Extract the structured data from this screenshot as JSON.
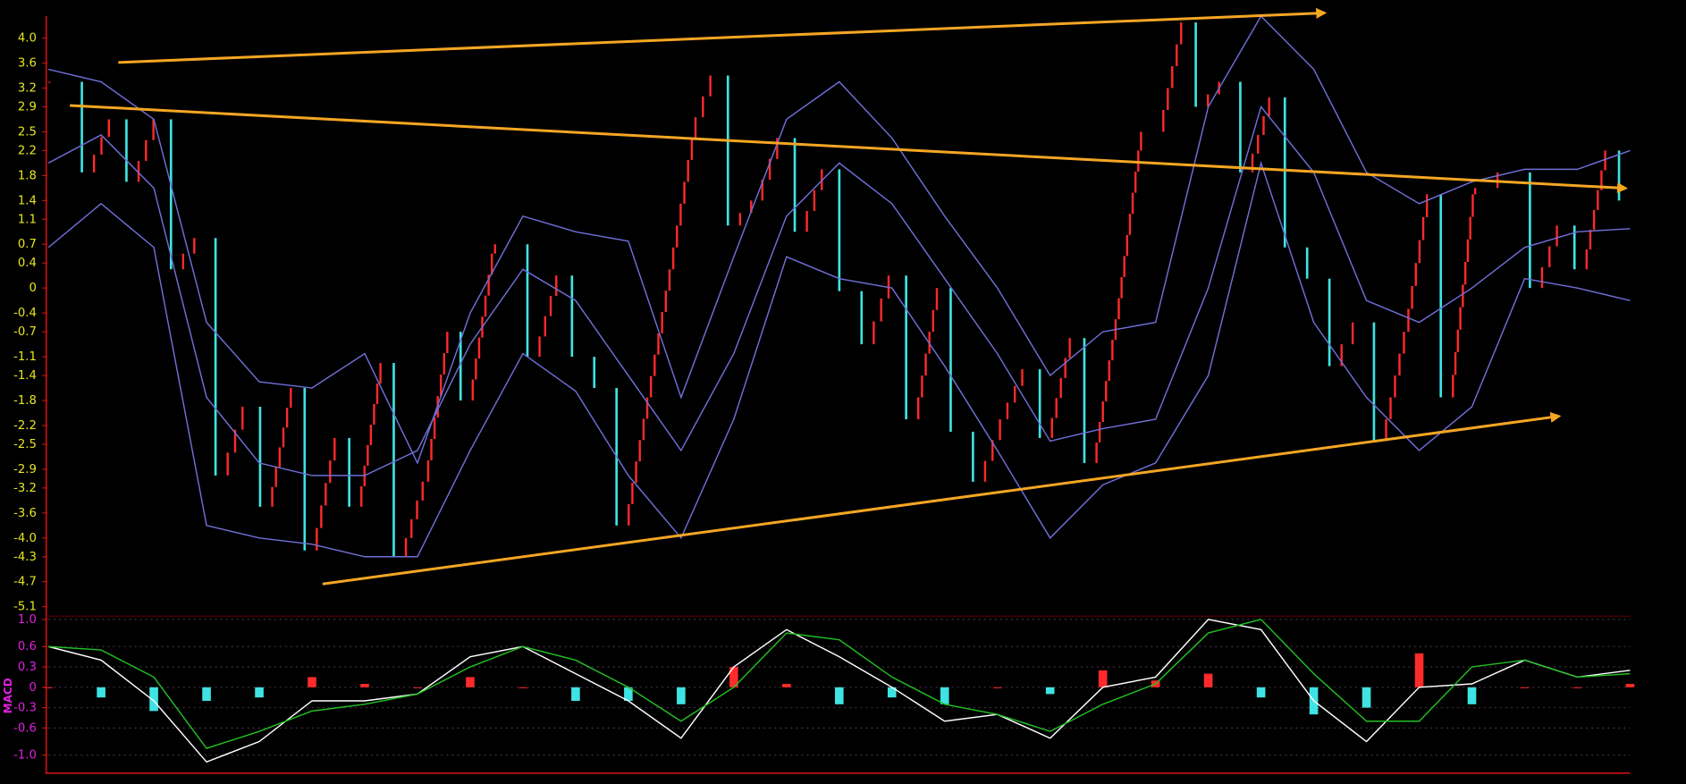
{
  "chart_data": [
    {
      "type": "candlestick",
      "values": [
        3.3,
        1.85,
        2.7,
        1.7,
        2.7,
        0.3,
        0.8,
        -3.0,
        -1.9,
        -3.5,
        -1.6,
        -4.2,
        -2.4,
        -3.5,
        -1.2,
        -4.3,
        -3.1,
        -0.7,
        -1.8,
        0.55,
        0.7,
        -1.1,
        0.2,
        -1.1,
        -1.6,
        -3.8,
        -1.75,
        0.3,
        2.4,
        3.4,
        1.0,
        1.4,
        2.4,
        0.9,
        1.9,
        -0.05,
        -0.9,
        0.2,
        -2.1,
        0,
        -2.3,
        -3.1,
        -2.1,
        -1.3,
        -2.4,
        -0.8,
        -2.8,
        -0.5,
        2.2,
        2.5,
        4.25,
        2.9,
        3.3,
        1.85,
        3.05,
        0.65,
        0.15,
        -1.25,
        -0.55,
        -2.45,
        -0.7,
        1.5,
        -1.75,
        1.5,
        1.6,
        1.85,
        0,
        1.0,
        0.3,
        2.2,
        1.4
      ],
      "up_color": "#ff2a2a",
      "down_color": "#3fe3e3",
      "series": [
        {
          "color": "#6f6fd8",
          "values": [
            3.5,
            3.3,
            2.7,
            -0.55,
            -1.5,
            -1.6,
            -1.05,
            -2.8,
            -0.4,
            1.15,
            0.9,
            0.75,
            -1.75,
            0.5,
            2.7,
            3.3,
            2.4,
            1.15,
            0.0,
            -1.4,
            -0.7,
            -0.55,
            2.9,
            4.35,
            3.5,
            1.85,
            1.35,
            1.7,
            1.9,
            1.9,
            2.2
          ]
        },
        {
          "color": "#6f6fd8",
          "values": [
            2.0,
            2.45,
            1.6,
            -1.75,
            -2.8,
            -3.0,
            -3.0,
            -2.6,
            -0.9,
            0.3,
            -0.2,
            -1.4,
            -2.6,
            -1.05,
            1.15,
            2.0,
            1.35,
            0.15,
            -1.05,
            -2.45,
            -2.25,
            -2.1,
            0.0,
            2.9,
            1.85,
            -0.2,
            -0.55,
            0.0,
            0.65,
            0.9,
            0.95
          ]
        },
        {
          "color": "#6f6fd8",
          "values": [
            0.65,
            1.35,
            0.65,
            -3.8,
            -4.0,
            -4.1,
            -4.3,
            -4.3,
            -2.6,
            -1.05,
            -1.65,
            -3.0,
            -4.0,
            -2.1,
            0.5,
            0.15,
            0.0,
            -1.25,
            -2.6,
            -4.0,
            -3.15,
            -2.8,
            -1.4,
            2.0,
            -0.55,
            -1.75,
            -2.6,
            -1.9,
            0.15,
            0.0,
            -0.2
          ]
        }
      ],
      "ylim": [
        -5.2,
        4.35
      ],
      "yticks": [
        {
          "value": 4.0,
          "label": "4.0"
        },
        3.6,
        3.2,
        2.9,
        2.5,
        2.2,
        1.8,
        1.4,
        1.1,
        0.7,
        0.4,
        0,
        -0.4,
        -0.7,
        -1.1,
        -1.4,
        -1.8,
        -2.2,
        -2.5,
        -2.9,
        -3.2,
        -3.6,
        {
          "value": -4.0,
          "label": "-4.0"
        },
        -4.3,
        -4.7,
        -5.1
      ],
      "tick_color": "#e6e61e"
    },
    {
      "type": "macd",
      "ylabel": "MACD",
      "series": [
        {
          "color": "#ffffff",
          "values": [
            0.6,
            0.4,
            -0.2,
            -1.1,
            -0.8,
            -0.2,
            -0.2,
            -0.1,
            0.45,
            0.6,
            0.2,
            -0.2,
            -0.75,
            0.3,
            0.85,
            0.45,
            0.0,
            -0.5,
            -0.4,
            -0.75,
            0.0,
            0.15,
            1.0,
            0.85,
            -0.2,
            -0.8,
            0.0,
            0.05,
            0.4,
            0.15,
            0.25
          ]
        },
        {
          "color": "#22c022",
          "values": [
            0.6,
            0.55,
            0.15,
            -0.9,
            -0.65,
            -0.35,
            -0.25,
            -0.1,
            0.3,
            0.6,
            0.4,
            0.0,
            -0.5,
            0.0,
            0.8,
            0.7,
            0.15,
            -0.25,
            -0.4,
            -0.65,
            -0.25,
            0.05,
            0.8,
            1.0,
            0.2,
            -0.5,
            -0.5,
            0.3,
            0.4,
            0.15,
            0.2
          ]
        }
      ],
      "histogram": {
        "values": [
          0,
          -0.15,
          -0.35,
          -0.2,
          -0.15,
          0.15,
          0.05,
          0,
          0.15,
          0,
          -0.2,
          -0.2,
          -0.25,
          0.3,
          0.05,
          -0.25,
          -0.15,
          -0.25,
          0,
          -0.1,
          0.25,
          0.1,
          0.2,
          -0.15,
          -0.4,
          -0.3,
          0.5,
          -0.25,
          0,
          0,
          0.05
        ],
        "up_color": "#ff2a2a",
        "down_color": "#3fe3e3"
      },
      "ylim": [
        -1.25,
        1.0
      ],
      "yticks": [
        {
          "value": 1.0,
          "label": "1.0"
        },
        0.6,
        0.3,
        0,
        -0.3,
        -0.6,
        {
          "value": -1.0,
          "label": "-1.0"
        }
      ],
      "tick_color": "#e020e0",
      "grid": true
    }
  ]
}
